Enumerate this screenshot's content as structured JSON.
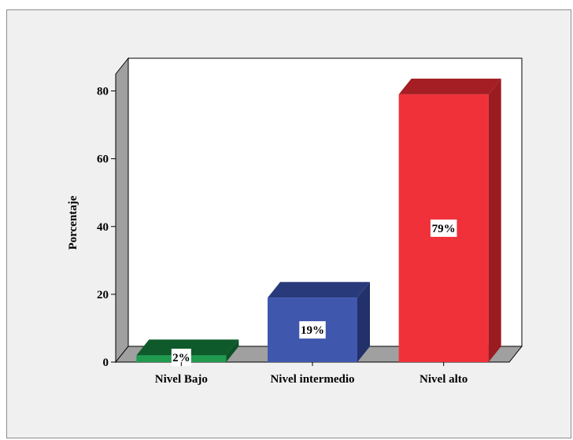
{
  "chart_data": {
    "type": "bar",
    "categories": [
      "Nivel Bajo",
      "Nivel intermedio",
      "Nivel alto"
    ],
    "values": [
      2,
      19,
      79
    ],
    "data_labels": [
      "2%",
      "19%",
      "79%"
    ],
    "ylabel": "Porcentaje",
    "xlabel": "",
    "ylim": [
      0,
      85
    ],
    "yticks": [
      0,
      20,
      40,
      60,
      80
    ],
    "grid": false,
    "three_d": true,
    "colors": {
      "front": [
        "#1f9a4f",
        "#3f57ad",
        "#f0313a"
      ],
      "top": [
        "#0f5a2a",
        "#283a7a",
        "#a41e24"
      ],
      "side": [
        "#0c5226",
        "#223169",
        "#9a1c22"
      ],
      "back_wall": "#ffffff",
      "side_wall": "#a0a0a0",
      "floor": "#a0a0a0"
    }
  }
}
